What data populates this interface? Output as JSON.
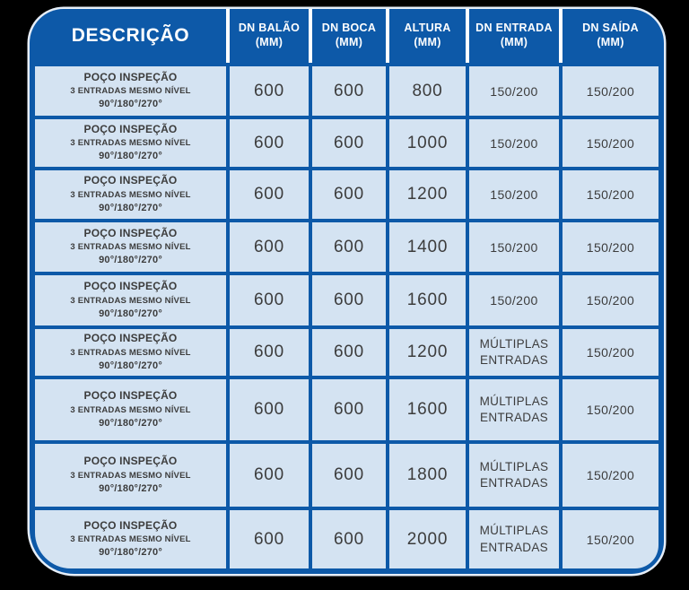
{
  "colors": {
    "page_background": "#000000",
    "card_blue": "#0d59a8",
    "cell_blue": "#d4e3f2",
    "header_text": "#ffffff",
    "cell_text": "#3c3c3c",
    "header_separator": "#ffffff",
    "outer_rim": "#e6eef8"
  },
  "table": {
    "columns": [
      {
        "key": "descricao",
        "label": "DESCRIÇÃO",
        "unit": ""
      },
      {
        "key": "dn_balao",
        "label": "DN BALÃO",
        "unit": "(MM)"
      },
      {
        "key": "dn_boca",
        "label": "DN BOCA",
        "unit": "(MM)"
      },
      {
        "key": "altura",
        "label": "ALTURA",
        "unit": "(MM)"
      },
      {
        "key": "dn_entrada",
        "label": "DN ENTRADA",
        "unit": "(MM)"
      },
      {
        "key": "dn_saida",
        "label": "DN SAÍDA",
        "unit": "(MM)"
      }
    ],
    "value_keys": [
      "dn_balao",
      "dn_boca",
      "altura",
      "dn_entrada",
      "dn_saida"
    ],
    "rows": [
      {
        "descricao": [
          "POÇO INSPEÇÃO",
          "3 ENTRADAS MESMO NÍVEL",
          "90°/180°/270°"
        ],
        "dn_balao": "600",
        "dn_boca": "600",
        "altura": "800",
        "dn_entrada": "150/200",
        "dn_saida": "150/200"
      },
      {
        "descricao": [
          "POÇO INSPEÇÃO",
          "3 ENTRADAS MESMO NÍVEL",
          "90°/180°/270°"
        ],
        "dn_balao": "600",
        "dn_boca": "600",
        "altura": "1000",
        "dn_entrada": "150/200",
        "dn_saida": "150/200"
      },
      {
        "descricao": [
          "POÇO INSPEÇÃO",
          "3 ENTRADAS MESMO NÍVEL",
          "90°/180°/270°"
        ],
        "dn_balao": "600",
        "dn_boca": "600",
        "altura": "1200",
        "dn_entrada": "150/200",
        "dn_saida": "150/200"
      },
      {
        "descricao": [
          "POÇO INSPEÇÃO",
          "3 ENTRADAS MESMO NÍVEL",
          "90°/180°/270°"
        ],
        "dn_balao": "600",
        "dn_boca": "600",
        "altura": "1400",
        "dn_entrada": "150/200",
        "dn_saida": "150/200"
      },
      {
        "descricao": [
          "POÇO INSPEÇÃO",
          "3 ENTRADAS MESMO NÍVEL",
          "90°/180°/270°"
        ],
        "dn_balao": "600",
        "dn_boca": "600",
        "altura": "1600",
        "dn_entrada": "150/200",
        "dn_saida": "150/200"
      },
      {
        "descricao": [
          "POÇO INSPEÇÃO",
          "3 ENTRADAS MESMO NÍVEL",
          "90°/180°/270°"
        ],
        "dn_balao": "600",
        "dn_boca": "600",
        "altura": "1200",
        "dn_entrada": "MÚLTIPLAS\nENTRADAS",
        "dn_saida": "150/200"
      },
      {
        "descricao": [
          "POÇO INSPEÇÃO",
          "3 ENTRADAS MESMO NÍVEL",
          "90°/180°/270°"
        ],
        "dn_balao": "600",
        "dn_boca": "600",
        "altura": "1600",
        "dn_entrada": "MÚLTIPLAS\nENTRADAS",
        "dn_saida": "150/200"
      },
      {
        "descricao": [
          "POÇO INSPEÇÃO",
          "3 ENTRADAS MESMO NÍVEL",
          "90°/180°/270°"
        ],
        "dn_balao": "600",
        "dn_boca": "600",
        "altura": "1800",
        "dn_entrada": "MÚLTIPLAS\nENTRADAS",
        "dn_saida": "150/200"
      },
      {
        "descricao": [
          "POÇO INSPEÇÃO",
          "3 ENTRADAS MESMO NÍVEL",
          "90°/180°/270°"
        ],
        "dn_balao": "600",
        "dn_boca": "600",
        "altura": "2000",
        "dn_entrada": "MÚLTIPLAS\nENTRADAS",
        "dn_saida": "150/200"
      }
    ]
  }
}
